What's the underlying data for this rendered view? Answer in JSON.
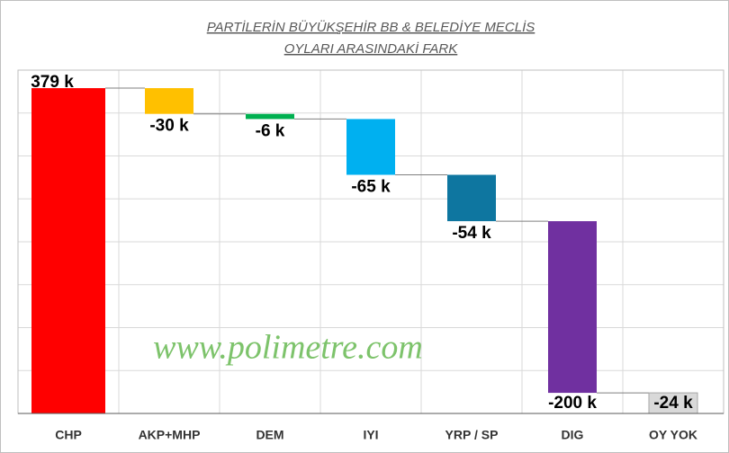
{
  "chart_data": {
    "type": "waterfall",
    "title": [
      "PARTİLERİN BÜYÜKŞEHİR BB & BELEDİYE MECLİS",
      "OYLARI ARASINDAKİ FARK"
    ],
    "watermark": "www.polimetre.com",
    "categories": [
      "CHP",
      "AKP+MHP",
      "DEM",
      "IYI",
      "YRP / SP",
      "DIG",
      "OY YOK"
    ],
    "values": [
      379,
      -30,
      -6,
      -65,
      -54,
      -200,
      -24
    ],
    "value_labels": [
      "379 k",
      "-30 k",
      "-6 k",
      "-65 k",
      "-54 k",
      "-200 k",
      "-24 k"
    ],
    "colors": [
      "#ff0000",
      "#ffc000",
      "#00b050",
      "#00b0f0",
      "#0e76a0",
      "#7030a0",
      "#d9d9d9"
    ],
    "ylim": [
      0,
      400
    ],
    "yticks": [
      0,
      50,
      100,
      150,
      200,
      250,
      300,
      350,
      400
    ],
    "grid": true
  }
}
